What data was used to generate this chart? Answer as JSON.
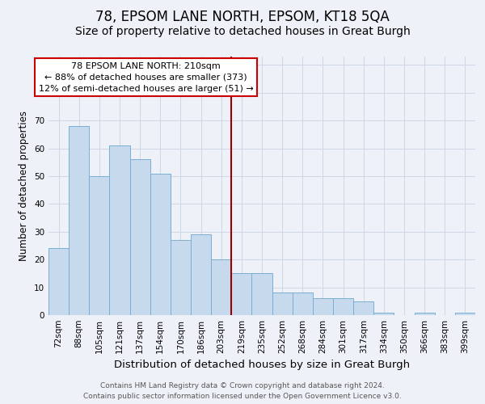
{
  "title1": "78, EPSOM LANE NORTH, EPSOM, KT18 5QA",
  "title2": "Size of property relative to detached houses in Great Burgh",
  "xlabel": "Distribution of detached houses by size in Great Burgh",
  "ylabel": "Number of detached properties",
  "categories": [
    "72sqm",
    "88sqm",
    "105sqm",
    "121sqm",
    "137sqm",
    "154sqm",
    "170sqm",
    "186sqm",
    "203sqm",
    "219sqm",
    "235sqm",
    "252sqm",
    "268sqm",
    "284sqm",
    "301sqm",
    "317sqm",
    "334sqm",
    "350sqm",
    "366sqm",
    "383sqm",
    "399sqm"
  ],
  "values": [
    24,
    68,
    50,
    61,
    56,
    51,
    27,
    29,
    20,
    15,
    15,
    8,
    8,
    6,
    6,
    5,
    1,
    0,
    1,
    0,
    1
  ],
  "bar_color": "#c6d9ed",
  "bar_edge_color": "#7aafd4",
  "vline_color": "#990000",
  "annotation_text": "78 EPSOM LANE NORTH: 210sqm\n← 88% of detached houses are smaller (373)\n12% of semi-detached houses are larger (51) →",
  "annotation_box_color": "#ffffff",
  "annotation_box_edge": "#cc0000",
  "ylim": [
    0,
    93
  ],
  "yticks": [
    0,
    10,
    20,
    30,
    40,
    50,
    60,
    70,
    80,
    90
  ],
  "grid_color": "#d0d8e8",
  "background_color": "#eef2f8",
  "footer": "Contains HM Land Registry data © Crown copyright and database right 2024.\nContains public sector information licensed under the Open Government Licence v3.0.",
  "title1_fontsize": 12,
  "title2_fontsize": 10,
  "xlabel_fontsize": 9.5,
  "ylabel_fontsize": 8.5,
  "tick_fontsize": 7.5,
  "annotation_fontsize": 8,
  "footer_fontsize": 6.5
}
